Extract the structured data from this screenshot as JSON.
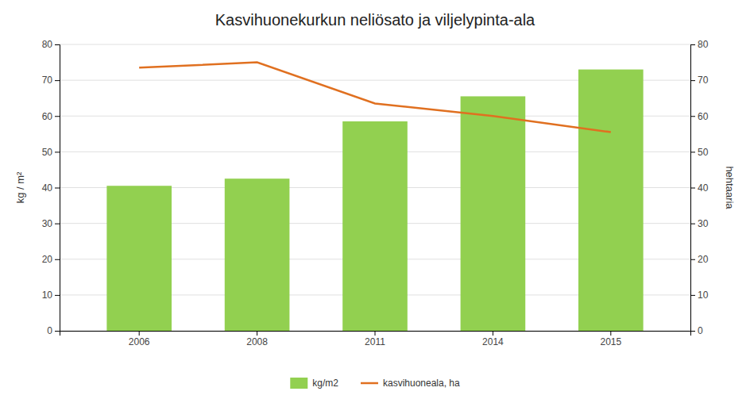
{
  "chart_data": {
    "type": "bar",
    "title": "Kasvihuonekurkun neliösato ja viljelypinta-ala",
    "categories": [
      "2006",
      "2008",
      "2011",
      "2014",
      "2015"
    ],
    "series": [
      {
        "name": "kg/m2",
        "type": "bar",
        "color": "#92d050",
        "values": [
          40.5,
          42.5,
          58.5,
          65.5,
          73.0
        ]
      },
      {
        "name": "kasvihuoneala, ha",
        "type": "line",
        "color": "#e07020",
        "axis": "y2",
        "values": [
          73.5,
          75.0,
          63.5,
          60.0,
          55.5
        ]
      }
    ],
    "ylabel": "kg / m²",
    "y2label": "hehtaaria",
    "ylim": [
      0,
      80
    ],
    "yticks": [
      0,
      10,
      20,
      30,
      40,
      50,
      60,
      70,
      80
    ],
    "y2lim": [
      0,
      80
    ],
    "y2ticks": [
      0,
      10,
      20,
      30,
      40,
      50,
      60,
      70,
      80
    ],
    "grid": true,
    "legend": "bottom"
  }
}
